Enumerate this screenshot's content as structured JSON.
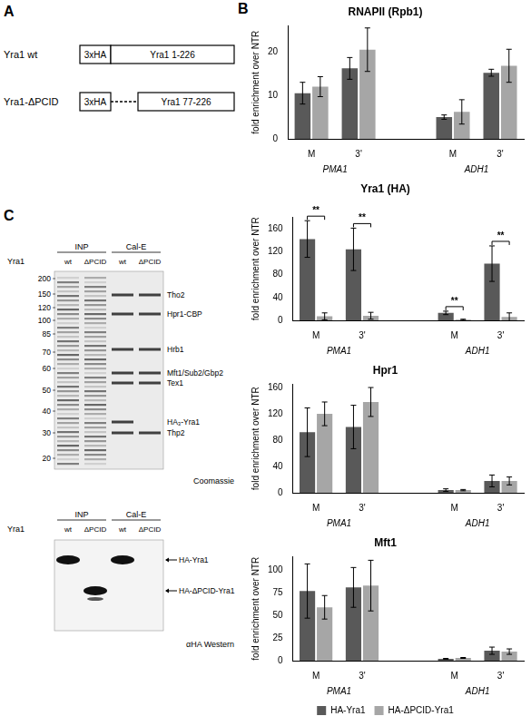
{
  "panel_a": {
    "label": "A",
    "constructs": [
      {
        "name": "Yra1 wt",
        "tag": "3xHA",
        "region": "Yra1 1-226",
        "deleted_region": false
      },
      {
        "name": "Yra1-ΔPCID",
        "tag": "3xHA",
        "region": "Yra1 77-226",
        "deleted_region": true
      }
    ]
  },
  "panel_b": {
    "label": "B"
  },
  "chart_data": [
    {
      "type": "bar",
      "title": "RNAPII (Rpb1)",
      "y_label": "fold enrichment over NTR",
      "categories": [
        "M",
        "3'",
        null,
        "M",
        "3'"
      ],
      "groups": [
        {
          "label": "PMA1",
          "categories": [
            0,
            1
          ]
        },
        {
          "label": "ADH1",
          "categories": [
            3,
            4
          ]
        }
      ],
      "series": [
        {
          "name": "HA-Yra1",
          "color": "#595959",
          "values": [
            10.5,
            16.2,
            null,
            5,
            15.2
          ],
          "errors": [
            2.5,
            2.5,
            null,
            0.5,
            0.8
          ]
        },
        {
          "name": "HA-ΔPCID-Yra1",
          "color": "#a6a6a6",
          "values": [
            12,
            20.5,
            null,
            6.2,
            16.8
          ],
          "errors": [
            2.3,
            5,
            null,
            2.8,
            3.8
          ]
        }
      ],
      "ylim": [
        0,
        26
      ],
      "yticks": [
        0,
        10,
        20
      ],
      "grid": false
    },
    {
      "type": "bar",
      "title": "Yra1 (HA)",
      "y_label": "fold enrichment over NTR",
      "categories": [
        "M",
        "3'",
        null,
        "M",
        "3'"
      ],
      "groups": [
        {
          "label": "PMA1",
          "categories": [
            0,
            1
          ]
        },
        {
          "label": "ADH1",
          "categories": [
            3,
            4
          ]
        }
      ],
      "series": [
        {
          "name": "HA-Yra1",
          "color": "#595959",
          "values": [
            142,
            124,
            null,
            13,
            99
          ],
          "errors": [
            32,
            37,
            null,
            3,
            31
          ]
        },
        {
          "name": "HA-ΔPCID-Yra1",
          "color": "#a6a6a6",
          "values": [
            7,
            8,
            null,
            1,
            6
          ],
          "errors": [
            6,
            6,
            null,
            1,
            7
          ]
        }
      ],
      "significance": [
        "**",
        "**",
        null,
        "**",
        "**"
      ],
      "ylim": [
        0,
        180
      ],
      "yticks": [
        0,
        40,
        80,
        120,
        160
      ],
      "grid": false
    },
    {
      "type": "bar",
      "title": "Hpr1",
      "y_label": "fold enrichment over NTR",
      "categories": [
        "M",
        "3'",
        null,
        "M",
        "3'"
      ],
      "groups": [
        {
          "label": "PMA1",
          "categories": [
            0,
            1
          ]
        },
        {
          "label": "ADH1",
          "categories": [
            3,
            4
          ]
        }
      ],
      "series": [
        {
          "name": "HA-Yra1",
          "color": "#595959",
          "values": [
            92,
            100,
            null,
            4,
            18
          ],
          "errors": [
            37,
            33,
            null,
            2,
            9
          ]
        },
        {
          "name": "HA-ΔPCID-Yra1",
          "color": "#a6a6a6",
          "values": [
            120,
            138,
            null,
            4,
            18
          ],
          "errors": [
            18,
            22,
            null,
            1,
            6
          ]
        }
      ],
      "ylim": [
        0,
        165
      ],
      "yticks": [
        0,
        40,
        80,
        120,
        160
      ],
      "grid": false
    },
    {
      "type": "bar",
      "title": "Mft1",
      "y_label": "fold enrichment over NTR",
      "categories": [
        "M",
        "3'",
        null,
        "M",
        "3'"
      ],
      "groups": [
        {
          "label": "PMA1",
          "categories": [
            0,
            1
          ]
        },
        {
          "label": "ADH1",
          "categories": [
            3,
            4
          ]
        }
      ],
      "series": [
        {
          "name": "HA-Yra1",
          "color": "#595959",
          "values": [
            77,
            81,
            null,
            2,
            11
          ],
          "errors": [
            30,
            22,
            null,
            0.5,
            4
          ]
        },
        {
          "name": "HA-ΔPCID-Yra1",
          "color": "#a6a6a6",
          "values": [
            59,
            83,
            null,
            3,
            10
          ],
          "errors": [
            13,
            28,
            null,
            0.5,
            3
          ]
        }
      ],
      "ylim": [
        0,
        115
      ],
      "yticks": [
        0,
        25,
        50,
        75,
        100
      ],
      "grid": false,
      "legend": "bottom"
    }
  ],
  "panel_c": {
    "label": "C",
    "coomassie": {
      "strain": "Yra1",
      "lane_groups": [
        "INP",
        "Cal-E"
      ],
      "samples": [
        "wt",
        "ΔPCID"
      ],
      "markers": [
        200,
        150,
        120,
        100,
        85,
        70,
        60,
        50,
        40,
        30,
        20
      ],
      "proteins": [
        "Tho2",
        "Hpr1-CBP",
        "Hrb1",
        "Mft1/Sub2/Gbp2",
        "Tex1",
        "HA₃-Yra1",
        "Thp2"
      ],
      "stain": "Coomassie"
    },
    "western": {
      "strain": "Yra1",
      "lane_groups": [
        "INP",
        "Cal-E"
      ],
      "samples": [
        "wt",
        "ΔPCID"
      ],
      "bands": [
        "HA-Yra1",
        "HA-ΔPCID-Yra1"
      ],
      "stain": "αHA Western"
    }
  }
}
